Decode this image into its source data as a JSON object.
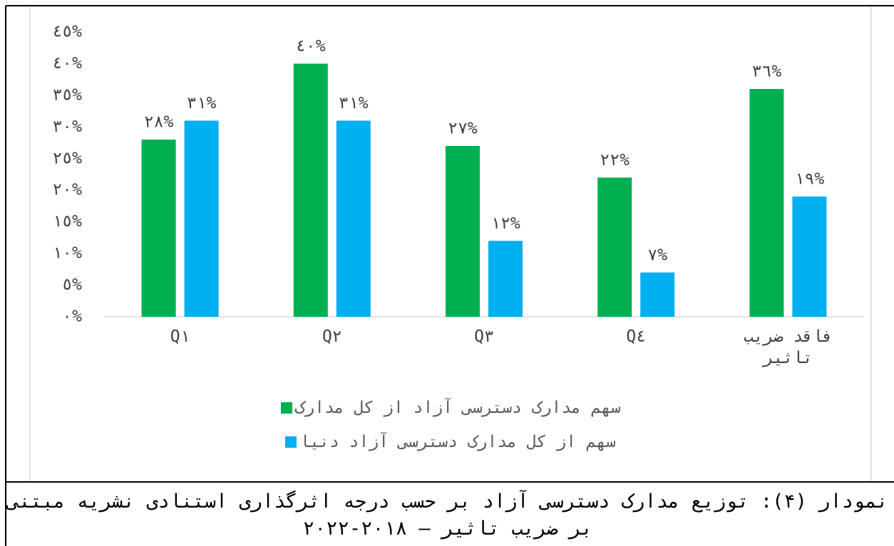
{
  "chart_data": {
    "type": "bar",
    "categories": [
      "Q١",
      "Q٢",
      "Q٣",
      "Q٤",
      "فاقد ضریب تاثیر"
    ],
    "series": [
      {
        "name": "سهم مدارک دسترسی آزاد از کل مدارک",
        "color": "#00b050",
        "values": [
          28,
          40,
          27,
          22,
          36
        ],
        "value_labels": [
          "٢٨%",
          "٤٠%",
          "٢٧%",
          "٢٢%",
          "٣٦%"
        ]
      },
      {
        "name": "سهم از کل مدارک دسترسی آزاد دنیا",
        "color": "#00b0f0",
        "values": [
          31,
          31,
          12,
          7,
          19
        ],
        "value_labels": [
          "٣١%",
          "٣١%",
          "١٢%",
          "٧%",
          "١٩%"
        ]
      }
    ],
    "ylim": [
      0,
      45
    ],
    "yticks": [
      {
        "value": 0,
        "label": "٠%"
      },
      {
        "value": 5,
        "label": "٥%"
      },
      {
        "value": 10,
        "label": "١٠%"
      },
      {
        "value": 15,
        "label": "١٥%"
      },
      {
        "value": 20,
        "label": "٢٠%"
      },
      {
        "value": 25,
        "label": "٢٥%"
      },
      {
        "value": 30,
        "label": "٣٠%"
      },
      {
        "value": 35,
        "label": "٣٥%"
      },
      {
        "value": 40,
        "label": "٤٠%"
      },
      {
        "value": 45,
        "label": "٤٥%"
      }
    ],
    "grid": false,
    "legend": "bottom"
  },
  "caption": "نمودار (۴): توزیع مدارک دسترسی آزاد بر حسب درجه اثرگذاری استنادی نشریه مبتنی بر ضریب تاثیر – ۲۰۱۸-۲۰۲۲"
}
